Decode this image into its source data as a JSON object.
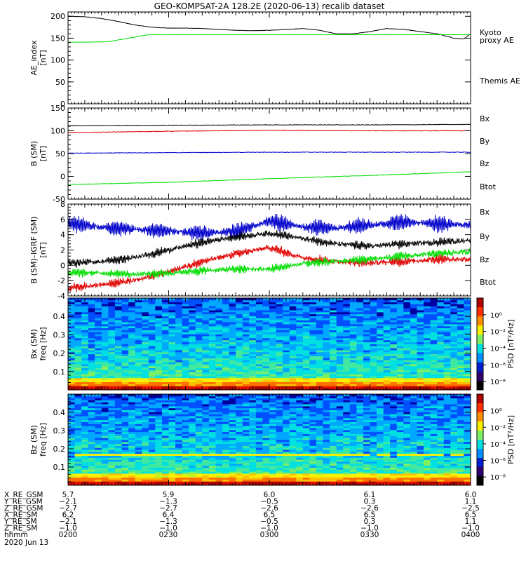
{
  "title": "GEO-KOMPSAT-2A 128.2E (2020-06-13) recalib dataset",
  "colors": {
    "black": "#000000",
    "green": "#00dd00",
    "red": "#e00000",
    "blue": "#0000cc"
  },
  "chart_data": [
    {
      "type": "line",
      "ylabel": [
        "AE_index",
        "[nT]"
      ],
      "ylim": [
        0,
        210
      ],
      "yticks": [
        0,
        50,
        100,
        150,
        200
      ],
      "xlim": [
        0,
        120
      ],
      "x_unit": "minutes after 0200 UT",
      "legend": [
        {
          "name": "Kyoto",
          "color": "green"
        },
        {
          "name": "proxy AE",
          "color": "green"
        },
        {
          "name": "Themis AE",
          "color": "black"
        }
      ],
      "series": [
        {
          "name": "Themis AE",
          "color": "black",
          "kind": "step",
          "x": [
            0,
            5,
            10,
            15,
            20,
            25,
            30,
            35,
            40,
            45,
            50,
            55,
            60,
            65,
            70,
            75,
            80,
            85,
            90,
            95,
            100,
            105,
            110,
            115,
            118,
            120
          ],
          "y": [
            200,
            199,
            195,
            188,
            180,
            175,
            173,
            173,
            172,
            170,
            168,
            167,
            168,
            170,
            172,
            168,
            160,
            160,
            165,
            172,
            170,
            165,
            160,
            150,
            148,
            160
          ]
        },
        {
          "name": "Kyoto proxy AE",
          "color": "green",
          "kind": "step",
          "x": [
            0,
            6,
            12,
            18,
            24,
            30,
            40,
            50,
            60,
            70,
            80,
            90,
            100,
            110,
            120
          ],
          "y": [
            141,
            141,
            142,
            150,
            158,
            158,
            158,
            158,
            158,
            158,
            158,
            158,
            158,
            158,
            158
          ]
        }
      ]
    },
    {
      "type": "line",
      "ylabel": [
        "B (SM)",
        "[nT]"
      ],
      "ylim": [
        -50,
        150
      ],
      "yticks": [
        -50,
        0,
        50,
        100,
        150
      ],
      "xlim": [
        0,
        120
      ],
      "legend": [
        {
          "name": "Bx",
          "color": "blue"
        },
        {
          "name": "By",
          "color": "green"
        },
        {
          "name": "Bz",
          "color": "red"
        },
        {
          "name": "Btot",
          "color": "black"
        }
      ],
      "series": [
        {
          "name": "Btot",
          "color": "black",
          "x": [
            0,
            30,
            60,
            90,
            120
          ],
          "y": [
            111,
            112,
            113,
            113,
            114
          ]
        },
        {
          "name": "Bz",
          "color": "red",
          "x": [
            0,
            30,
            60,
            90,
            120
          ],
          "y": [
            96,
            99,
            101,
            100,
            100
          ]
        },
        {
          "name": "Bx",
          "color": "blue",
          "x": [
            0,
            30,
            60,
            90,
            120
          ],
          "y": [
            51,
            52,
            53,
            53,
            53
          ]
        },
        {
          "name": "By",
          "color": "green",
          "x": [
            0,
            30,
            60,
            90,
            120
          ],
          "y": [
            -18,
            -13,
            -5,
            2,
            10
          ]
        }
      ]
    },
    {
      "type": "line",
      "ylabel": [
        "B (SM)–IGRF (SM)",
        "[nT]"
      ],
      "ylim": [
        -4,
        8
      ],
      "yticks": [
        -4,
        -2,
        0,
        2,
        4,
        6,
        8
      ],
      "xlim": [
        0,
        120
      ],
      "legend": [
        {
          "name": "Bx",
          "color": "blue"
        },
        {
          "name": "By",
          "color": "green"
        },
        {
          "name": "Bz",
          "color": "red"
        },
        {
          "name": "Btot",
          "color": "black"
        }
      ],
      "series": [
        {
          "name": "Bx",
          "color": "blue",
          "x": [
            0,
            10,
            20,
            30,
            40,
            50,
            60,
            70,
            80,
            90,
            100,
            110,
            120
          ],
          "y": [
            5.5,
            5,
            4.7,
            4.5,
            4.2,
            4.4,
            5.8,
            5.0,
            4.9,
            5.2,
            5.7,
            5.4,
            5.3
          ]
        },
        {
          "name": "Btot",
          "color": "black",
          "x": [
            0,
            10,
            20,
            30,
            40,
            50,
            60,
            70,
            80,
            90,
            100,
            110,
            120
          ],
          "y": [
            0.3,
            0.5,
            1.0,
            2.0,
            3.0,
            3.7,
            4.2,
            3.5,
            2.8,
            2.5,
            2.8,
            3.0,
            3.3
          ]
        },
        {
          "name": "Bz",
          "color": "red",
          "x": [
            0,
            10,
            20,
            30,
            40,
            50,
            60,
            70,
            80,
            90,
            100,
            110,
            120
          ],
          "y": [
            -3.0,
            -2.5,
            -2.0,
            -0.8,
            0.5,
            1.5,
            2.3,
            1.0,
            0.5,
            0.3,
            0.5,
            0.8,
            0.8
          ]
        },
        {
          "name": "By",
          "color": "green",
          "x": [
            0,
            10,
            20,
            30,
            40,
            50,
            60,
            70,
            80,
            90,
            100,
            110,
            120
          ],
          "y": [
            -1.0,
            -1.0,
            -1.2,
            -1.0,
            -0.7,
            -0.5,
            -0.5,
            0.2,
            0.5,
            0.8,
            1.2,
            1.5,
            1.8
          ]
        }
      ]
    },
    {
      "type": "heatmap",
      "ylabel": [
        "Bx (SM)",
        "freq [Hz]"
      ],
      "ylim": [
        0,
        0.5
      ],
      "yticks": [
        0.1,
        0.2,
        0.3,
        0.4
      ],
      "xlim": [
        0,
        120
      ],
      "colorbar": {
        "label": "PSD [nT²/Hz]",
        "log": true,
        "range": [
          -9,
          2
        ],
        "ticks": [
          "10⁰",
          "10⁻²",
          "10⁻⁴",
          "10⁻⁶",
          "10⁻⁸"
        ]
      },
      "data_note": "power spectral density per frequency and time"
    },
    {
      "type": "heatmap",
      "ylabel": [
        "Bz (SM)",
        "freq [Hz]"
      ],
      "ylim": [
        0,
        0.5
      ],
      "yticks": [
        0.1,
        0.2,
        0.3,
        0.4
      ],
      "xlim": [
        0,
        120
      ],
      "colorbar": {
        "label": "PSD [nT²/Hz]",
        "log": true,
        "range": [
          -9,
          2
        ],
        "ticks": [
          "10⁰",
          "10⁻²",
          "10⁻⁴",
          "10⁻⁶",
          "10⁻⁸"
        ]
      }
    }
  ],
  "ephemeris": {
    "rows": [
      {
        "label": "X_RE_GSM",
        "values": [
          "5.7",
          "5.9",
          "6.0",
          "6.1",
          "6.0"
        ]
      },
      {
        "label": "Y_RE_GSM",
        "values": [
          "−2.1",
          "−1.3",
          "−0.5",
          "0.3",
          "1.1"
        ]
      },
      {
        "label": "Z_RE_GSM",
        "values": [
          "−2.7",
          "−2.7",
          "−2.6",
          "−2.6",
          "−2.5"
        ]
      },
      {
        "label": "X_RE_SM",
        "values": [
          "6.2",
          "6.4",
          "6.5",
          "6.5",
          "6.5"
        ]
      },
      {
        "label": "Y_RE_SM",
        "values": [
          "−2.1",
          "−1.3",
          "−0.5",
          "0.3",
          "1.1"
        ]
      },
      {
        "label": "Z_RE_SM",
        "values": [
          "−1.0",
          "−1.0",
          "−1.0",
          "−1.0",
          "−1.0"
        ]
      },
      {
        "label": "hhmm",
        "values": [
          "0200",
          "0230",
          "0300",
          "0330",
          "0400"
        ]
      }
    ],
    "date": "2020 Jun 13"
  }
}
